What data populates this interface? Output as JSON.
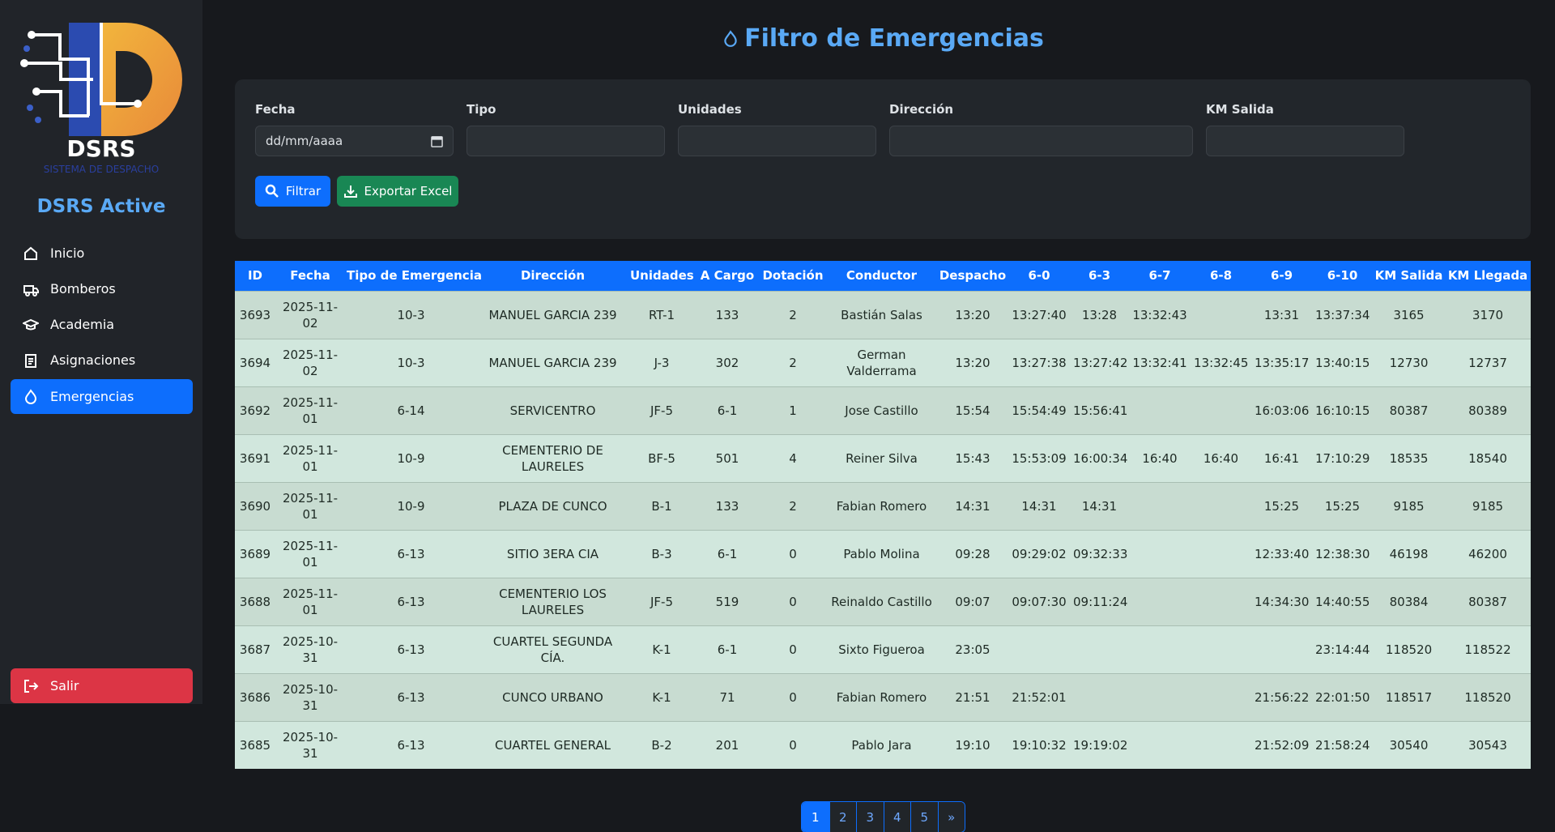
{
  "sidebar": {
    "logo_text": "DSRS",
    "logo_subtitle": "SISTEMA DE DESPACHO",
    "brand": "DSRS Active",
    "nav": [
      "Inicio",
      "Bomberos",
      "Academia",
      "Asignaciones",
      "Emergencias"
    ],
    "logout": "Salir"
  },
  "header": {
    "title": "Filtro de Emergencias"
  },
  "filters": {
    "labels": [
      "Fecha",
      "Tipo",
      "Unidades",
      "Dirección",
      "KM Salida"
    ],
    "date_placeholder": "dd/mm/aaaa",
    "buttons": [
      "Filtrar",
      "Exportar Excel"
    ]
  },
  "table": {
    "headers": [
      "ID",
      "Fecha",
      "Tipo de Emergencia",
      "Dirección",
      "Unidades",
      "A Cargo",
      "Dotación",
      "Conductor",
      "Despacho",
      "6-0",
      "6-3",
      "6-7",
      "6-8",
      "6-9",
      "6-10",
      "KM Salida",
      "KM Llegada"
    ],
    "rows": [
      [
        "3693",
        "2025-11-02",
        "10-3",
        "MANUEL GARCIA 239",
        "RT-1",
        "133",
        "2",
        "Bastián Salas",
        "13:20",
        "13:27:40",
        "13:28",
        "13:32:43",
        null,
        "13:31",
        "13:37:34",
        "3165",
        "3170"
      ],
      [
        "3694",
        "2025-11-02",
        "10-3",
        "MANUEL GARCIA 239",
        "J-3",
        "302",
        "2",
        "German Valderrama",
        "13:20",
        "13:27:38",
        "13:27:42",
        "13:32:41",
        "13:32:45",
        "13:35:17",
        "13:40:15",
        "12730",
        "12737"
      ],
      [
        "3692",
        "2025-11-01",
        "6-14",
        "SERVICENTRO",
        "JF-5",
        "6-1",
        "1",
        "Jose Castillo",
        "15:54",
        "15:54:49",
        "15:56:41",
        null,
        null,
        "16:03:06",
        "16:10:15",
        "80387",
        "80389"
      ],
      [
        "3691",
        "2025-11-01",
        "10-9",
        "CEMENTERIO DE LAURELES",
        "BF-5",
        "501",
        "4",
        "Reiner Silva",
        "15:43",
        "15:53:09",
        "16:00:34",
        "16:40",
        "16:40",
        "16:41",
        "17:10:29",
        "18535",
        "18540"
      ],
      [
        "3690",
        "2025-11-01",
        "10-9",
        "PLAZA DE CUNCO",
        "B-1",
        "133",
        "2",
        "Fabian Romero",
        "14:31",
        "14:31",
        "14:31",
        null,
        null,
        "15:25",
        "15:25",
        "9185",
        "9185"
      ],
      [
        "3689",
        "2025-11-01",
        "6-13",
        "SITIO 3ERA CIA",
        "B-3",
        "6-1",
        "0",
        "Pablo Molina",
        "09:28",
        "09:29:02",
        "09:32:33",
        null,
        null,
        "12:33:40",
        "12:38:30",
        "46198",
        "46200"
      ],
      [
        "3688",
        "2025-11-01",
        "6-13",
        "CEMENTERIO LOS LAURELES",
        "JF-5",
        "519",
        "0",
        "Reinaldo Castillo",
        "09:07",
        "09:07:30",
        "09:11:24",
        null,
        null,
        "14:34:30",
        "14:40:55",
        "80384",
        "80387"
      ],
      [
        "3687",
        "2025-10-31",
        "6-13",
        "CUARTEL SEGUNDA CÍA.",
        "K-1",
        "6-1",
        "0",
        "Sixto Figueroa",
        "23:05",
        null,
        null,
        null,
        null,
        null,
        "23:14:44",
        "118520",
        "118522"
      ],
      [
        "3686",
        "2025-10-31",
        "6-13",
        "CUNCO URBANO",
        "K-1",
        "71",
        "0",
        "Fabian Romero",
        "21:51",
        "21:52:01",
        null,
        null,
        null,
        "21:56:22",
        "22:01:50",
        "118517",
        "118520"
      ],
      [
        "3685",
        "2025-10-31",
        "6-13",
        "CUARTEL GENERAL",
        "B-2",
        "201",
        "0",
        "Pablo Jara",
        "19:10",
        "19:10:32",
        "19:19:02",
        null,
        null,
        "21:52:09",
        "21:58:24",
        "30540",
        "30543"
      ]
    ]
  },
  "pagination": [
    "1",
    "2",
    "3",
    "4",
    "5",
    "»"
  ]
}
